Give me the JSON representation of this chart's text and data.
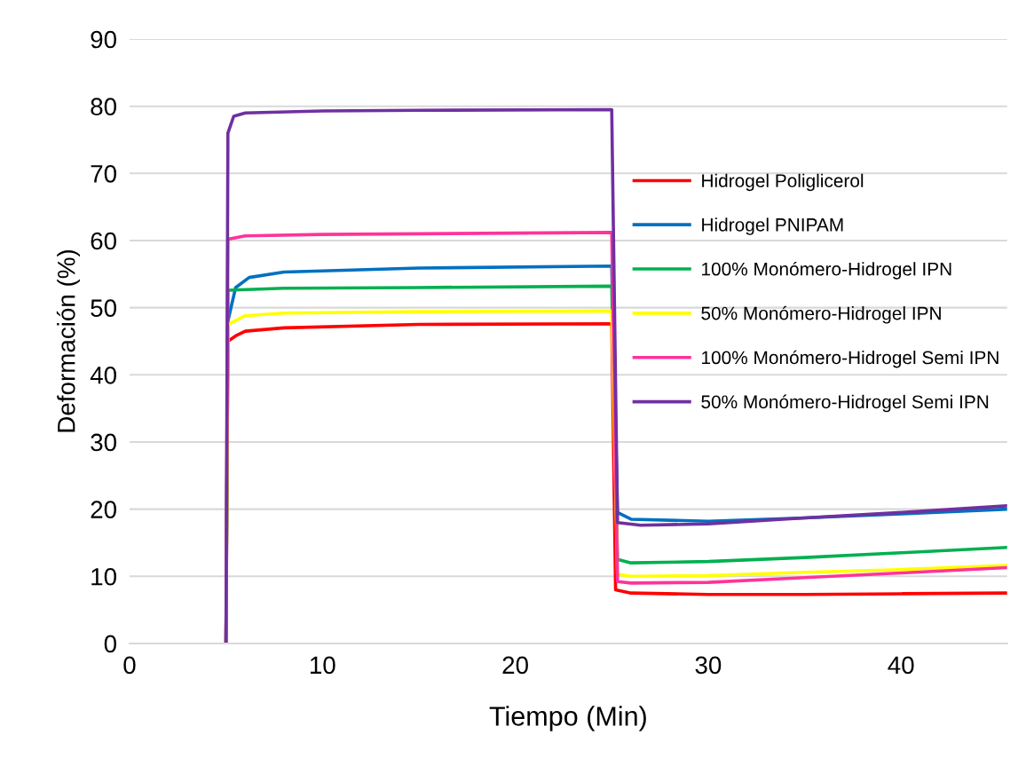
{
  "chart_data": {
    "type": "line",
    "xlabel": "Tiempo (Min)",
    "ylabel": "Deformación (%)",
    "xlim": [
      0,
      45.5
    ],
    "xticks": [
      0,
      10,
      20,
      30,
      40
    ],
    "ylim": [
      0,
      90
    ],
    "yticks": [
      0,
      10,
      20,
      30,
      40,
      50,
      60,
      70,
      80,
      90
    ],
    "grid": "y",
    "legend": "right",
    "marker": "none",
    "line_style": "solid",
    "series": [
      {
        "name": "Hidrogel Poliglicerol",
        "color": "#ff0000",
        "x": [
          5,
          5.1,
          5.5,
          6,
          8,
          15,
          25,
          25.2,
          26,
          30,
          35,
          40,
          45.5
        ],
        "values": [
          0,
          45,
          45.8,
          46.5,
          47,
          47.5,
          47.6,
          8,
          7.5,
          7.3,
          7.3,
          7.4,
          7.5
        ]
      },
      {
        "name": "Hidrogel PNIPAM",
        "color": "#0070c0",
        "x": [
          5,
          5.1,
          5.5,
          6.2,
          8,
          15,
          25,
          25.3,
          26,
          30,
          35,
          40,
          45.5
        ],
        "values": [
          0,
          48,
          53,
          54.5,
          55.3,
          55.9,
          56.2,
          19.5,
          18.5,
          18.2,
          18.7,
          19.3,
          20
        ]
      },
      {
        "name": "100% Monómero-Hidrogel IPN",
        "color": "#00b050",
        "x": [
          5,
          5.1,
          8,
          15,
          25,
          25.3,
          26,
          30,
          35,
          40,
          45.5
        ],
        "values": [
          0,
          52.6,
          52.9,
          53,
          53.2,
          12.5,
          12,
          12.2,
          12.8,
          13.5,
          14.3
        ]
      },
      {
        "name": "50% Monómero-Hidrogel IPN",
        "color": "#ffff00",
        "x": [
          5,
          5.1,
          6,
          8,
          15,
          25,
          25.3,
          26,
          30,
          35,
          40,
          45.5
        ],
        "values": [
          0,
          47.5,
          48.8,
          49.2,
          49.4,
          49.5,
          10.3,
          10,
          10.1,
          10.6,
          11,
          11.6
        ]
      },
      {
        "name": "100% Monómero-Hidrogel Semi IPN",
        "color": "#ff3399",
        "x": [
          5,
          5.1,
          6,
          10,
          15,
          25,
          25.3,
          26,
          30,
          35,
          40,
          45.5
        ],
        "values": [
          0,
          60.2,
          60.7,
          60.9,
          61,
          61.2,
          9.2,
          9,
          9.1,
          9.8,
          10.5,
          11.3
        ]
      },
      {
        "name": "50% Monómero-Hidrogel Semi IPN",
        "color": "#7030a0",
        "x": [
          5,
          5.1,
          5.4,
          6,
          10,
          15,
          25,
          25.3,
          26.5,
          30,
          35,
          40,
          45.5
        ],
        "values": [
          0,
          76,
          78.5,
          79,
          79.3,
          79.4,
          79.5,
          18,
          17.6,
          17.8,
          18.7,
          19.5,
          20.5
        ]
      }
    ]
  }
}
